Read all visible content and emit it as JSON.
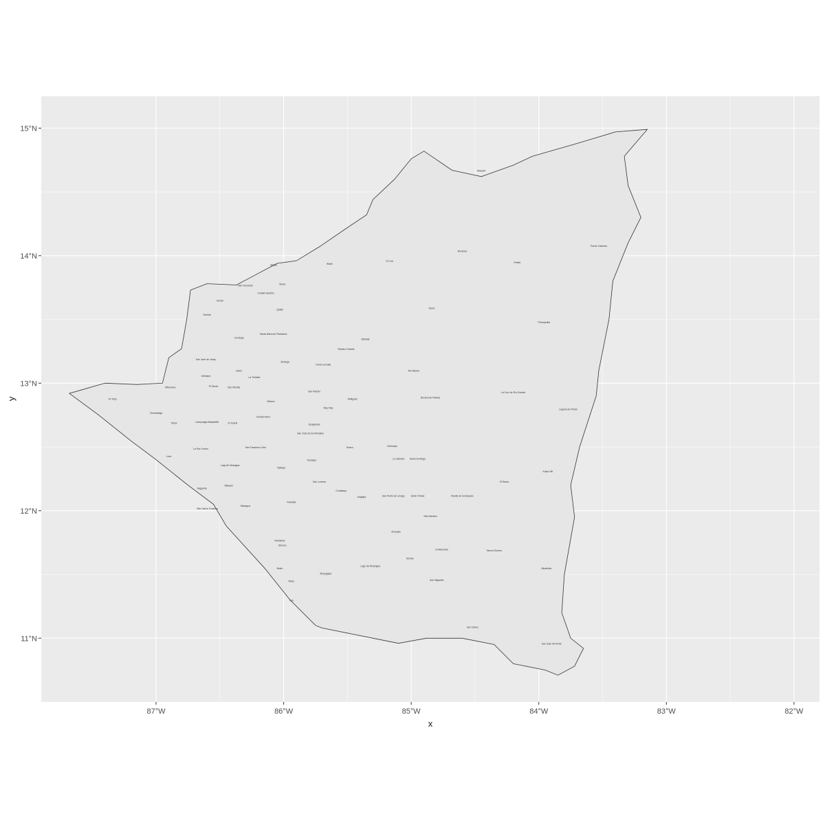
{
  "chart_data": {
    "type": "map",
    "xlabel": "x",
    "ylabel": "y",
    "xlim": [
      -87.9,
      -81.8
    ],
    "ylim": [
      10.5,
      15.25
    ],
    "x_ticks": [
      -87,
      -86,
      -85,
      -84,
      -83,
      -82
    ],
    "x_tick_labels": [
      "87°W",
      "86°W",
      "85°W",
      "84°W",
      "83°W",
      "82°W"
    ],
    "y_ticks": [
      11,
      12,
      13,
      14,
      15
    ],
    "y_tick_labels": [
      "11°N",
      "12°N",
      "13°N",
      "14°N",
      "15°N"
    ],
    "grid": true,
    "colors": {
      "panel": "#ebebeb",
      "grid": "#ffffff",
      "fill": "#e6e6e6",
      "border": "#333333"
    },
    "outline": [
      [
        -83.15,
        14.99
      ],
      [
        -83.4,
        14.97
      ],
      [
        -83.7,
        14.88
      ],
      [
        -84.05,
        14.78
      ],
      [
        -84.2,
        14.71
      ],
      [
        -84.45,
        14.62
      ],
      [
        -84.68,
        14.67
      ],
      [
        -84.9,
        14.82
      ],
      [
        -85.0,
        14.76
      ],
      [
        -85.13,
        14.6
      ],
      [
        -85.3,
        14.44
      ],
      [
        -85.35,
        14.32
      ],
      [
        -85.5,
        14.22
      ],
      [
        -85.72,
        14.07
      ],
      [
        -85.9,
        13.96
      ],
      [
        -86.05,
        13.94
      ],
      [
        -86.22,
        13.85
      ],
      [
        -86.37,
        13.77
      ],
      [
        -86.6,
        13.78
      ],
      [
        -86.73,
        13.73
      ],
      [
        -86.76,
        13.5
      ],
      [
        -86.8,
        13.27
      ],
      [
        -86.9,
        13.2
      ],
      [
        -86.95,
        13.0
      ],
      [
        -87.15,
        12.99
      ],
      [
        -87.4,
        13.0
      ],
      [
        -87.68,
        12.92
      ],
      [
        -87.45,
        12.75
      ],
      [
        -87.2,
        12.55
      ],
      [
        -87.0,
        12.4
      ],
      [
        -86.75,
        12.2
      ],
      [
        -86.55,
        12.05
      ],
      [
        -86.45,
        11.88
      ],
      [
        -86.15,
        11.55
      ],
      [
        -85.95,
        11.3
      ],
      [
        -85.75,
        11.1
      ],
      [
        -85.7,
        11.08
      ],
      [
        -85.3,
        11.0
      ],
      [
        -85.1,
        10.96
      ],
      [
        -84.88,
        11.0
      ],
      [
        -84.6,
        11.0
      ],
      [
        -84.35,
        10.95
      ],
      [
        -84.2,
        10.8
      ],
      [
        -83.95,
        10.75
      ],
      [
        -83.85,
        10.71
      ],
      [
        -83.72,
        10.78
      ],
      [
        -83.65,
        10.92
      ],
      [
        -83.75,
        11.0
      ],
      [
        -83.82,
        11.2
      ],
      [
        -83.8,
        11.5
      ],
      [
        -83.72,
        11.95
      ],
      [
        -83.75,
        12.2
      ],
      [
        -83.68,
        12.5
      ],
      [
        -83.55,
        12.9
      ],
      [
        -83.53,
        13.1
      ],
      [
        -83.45,
        13.5
      ],
      [
        -83.42,
        13.8
      ],
      [
        -83.3,
        14.1
      ],
      [
        -83.2,
        14.3
      ],
      [
        -83.3,
        14.55
      ],
      [
        -83.33,
        14.78
      ]
    ],
    "municipalities": [
      {
        "name": "Waspán",
        "lon": -84.45,
        "lat": 14.66
      },
      {
        "name": "Puerto Cabezas",
        "lon": -83.53,
        "lat": 14.07
      },
      {
        "name": "Bonanza",
        "lon": -84.6,
        "lat": 14.03
      },
      {
        "name": "Rosita",
        "lon": -84.17,
        "lat": 13.94
      },
      {
        "name": "Wiwilí",
        "lon": -85.64,
        "lat": 13.93
      },
      {
        "name": "El Cuá",
        "lon": -85.17,
        "lat": 13.95
      },
      {
        "name": "Siuna",
        "lon": -84.84,
        "lat": 13.58
      },
      {
        "name": "Prinzapolka",
        "lon": -83.96,
        "lat": 13.47
      },
      {
        "name": "Waslala",
        "lon": -85.36,
        "lat": 13.34
      },
      {
        "name": "Rancho Grande",
        "lon": -85.51,
        "lat": 13.26
      },
      {
        "name": "Río Blanco",
        "lon": -84.98,
        "lat": 13.09
      },
      {
        "name": "La Cruz de Río Grande",
        "lon": -84.2,
        "lat": 12.92
      },
      {
        "name": "Laguna de Perlas",
        "lon": -83.77,
        "lat": 12.79
      },
      {
        "name": "Bocana de Paiwas",
        "lon": -84.85,
        "lat": 12.88
      },
      {
        "name": "Matiguás",
        "lon": -85.46,
        "lat": 12.87
      },
      {
        "name": "Muy Muy",
        "lon": -85.65,
        "lat": 12.8
      },
      {
        "name": "San Ramón",
        "lon": -85.76,
        "lat": 12.93
      },
      {
        "name": "Tuma-La Dalia",
        "lon": -85.69,
        "lat": 13.14
      },
      {
        "name": "Jinotega",
        "lon": -85.99,
        "lat": 13.16
      },
      {
        "name": "Santa María de Pantasma",
        "lon": -86.08,
        "lat": 13.38
      },
      {
        "name": "Jalapa",
        "lon": -86.08,
        "lat": 13.92
      },
      {
        "name": "Murra",
        "lon": -86.01,
        "lat": 13.77
      },
      {
        "name": "Quilalí",
        "lon": -86.03,
        "lat": 13.57
      },
      {
        "name": "Ciudad Sandino",
        "lon": -86.14,
        "lat": 13.7
      },
      {
        "name": "San Fernando",
        "lon": -86.3,
        "lat": 13.76
      },
      {
        "name": "Ocotal",
        "lon": -86.5,
        "lat": 13.64
      },
      {
        "name": "Somoto",
        "lon": -86.6,
        "lat": 13.53
      },
      {
        "name": "Condega",
        "lon": -86.35,
        "lat": 13.35
      },
      {
        "name": "Estelí",
        "lon": -86.35,
        "lat": 13.09
      },
      {
        "name": "San Juan de Limay",
        "lon": -86.61,
        "lat": 13.18
      },
      {
        "name": "Achuapa",
        "lon": -86.61,
        "lat": 13.05
      },
      {
        "name": "Villanueva",
        "lon": -86.89,
        "lat": 12.96
      },
      {
        "name": "El Sauce",
        "lon": -86.55,
        "lat": 12.97
      },
      {
        "name": "San Nicolás",
        "lon": -86.39,
        "lat": 12.96
      },
      {
        "name": "La Trinidad",
        "lon": -86.23,
        "lat": 13.04
      },
      {
        "name": "Sébaco",
        "lon": -86.1,
        "lat": 12.85
      },
      {
        "name": "Ciudad Darío",
        "lon": -86.16,
        "lat": 12.73
      },
      {
        "name": "El Viejo",
        "lon": -87.34,
        "lat": 12.87
      },
      {
        "name": "Chinandega",
        "lon": -87.0,
        "lat": 12.76
      },
      {
        "name": "Telica",
        "lon": -86.86,
        "lat": 12.68
      },
      {
        "name": "Larreynaga-Malpaisillo",
        "lon": -86.6,
        "lat": 12.69
      },
      {
        "name": "El Jicaral",
        "lon": -86.4,
        "lat": 12.68
      },
      {
        "name": "León",
        "lon": -86.9,
        "lat": 12.42
      },
      {
        "name": "La Paz Centro",
        "lon": -86.65,
        "lat": 12.48
      },
      {
        "name": "Nagarote",
        "lon": -86.64,
        "lat": 12.17
      },
      {
        "name": "Villa Carlos Fonseca",
        "lon": -86.6,
        "lat": 12.01
      },
      {
        "name": "Mateare",
        "lon": -86.43,
        "lat": 12.19
      },
      {
        "name": "Lago de Managua",
        "lon": -86.42,
        "lat": 12.35
      },
      {
        "name": "San Francisco Libre",
        "lon": -86.22,
        "lat": 12.49
      },
      {
        "name": "Tipitapa",
        "lon": -86.02,
        "lat": 12.33
      },
      {
        "name": "Managua",
        "lon": -86.3,
        "lat": 12.03
      },
      {
        "name": "Granada",
        "lon": -85.94,
        "lat": 12.06
      },
      {
        "name": "Diriomo",
        "lon": -86.01,
        "lat": 11.72
      },
      {
        "name": "Nandaime",
        "lon": -86.03,
        "lat": 11.76
      },
      {
        "name": "Rivas",
        "lon": -85.94,
        "lat": 11.44
      },
      {
        "name": "Belén",
        "lon": -86.03,
        "lat": 11.54
      },
      {
        "name": "Tola",
        "lon": -85.94,
        "lat": 11.29
      },
      {
        "name": "Moyogalpa",
        "lon": -85.67,
        "lat": 11.5
      },
      {
        "name": "Lago de Nicaragua",
        "lon": -85.32,
        "lat": 11.56
      },
      {
        "name": "San Lorenzo",
        "lon": -85.72,
        "lat": 12.22
      },
      {
        "name": "Comalapa",
        "lon": -85.55,
        "lat": 12.15
      },
      {
        "name": "Juigalpa",
        "lon": -85.39,
        "lat": 12.1
      },
      {
        "name": "Acoyapa",
        "lon": -85.12,
        "lat": 11.83
      },
      {
        "name": "Morrito",
        "lon": -85.01,
        "lat": 11.62
      },
      {
        "name": "San Miguelito",
        "lon": -84.8,
        "lat": 11.45
      },
      {
        "name": "San Carlos",
        "lon": -84.52,
        "lat": 11.08
      },
      {
        "name": "San Juan del Norte",
        "lon": -83.9,
        "lat": 10.95
      },
      {
        "name": "El Almendro",
        "lon": -84.76,
        "lat": 11.69
      },
      {
        "name": "Nueva Guinea",
        "lon": -84.35,
        "lat": 11.68
      },
      {
        "name": "Bluefields",
        "lon": -83.94,
        "lat": 11.54
      },
      {
        "name": "Villa Sandino",
        "lon": -84.85,
        "lat": 11.95
      },
      {
        "name": "Santo Tomás",
        "lon": -84.95,
        "lat": 12.11
      },
      {
        "name": "Muelle de los Bueyes",
        "lon": -84.6,
        "lat": 12.11
      },
      {
        "name": "El Rama",
        "lon": -84.27,
        "lat": 12.22
      },
      {
        "name": "Kukra Hill",
        "lon": -83.93,
        "lat": 12.3
      },
      {
        "name": "San Pedro de Lóvago",
        "lon": -85.14,
        "lat": 12.11
      },
      {
        "name": "La Libertad",
        "lon": -85.1,
        "lat": 12.4
      },
      {
        "name": "Santo Domingo",
        "lon": -84.95,
        "lat": 12.4
      },
      {
        "name": "Camoapa",
        "lon": -85.15,
        "lat": 12.5
      },
      {
        "name": "Boaco",
        "lon": -85.48,
        "lat": 12.49
      },
      {
        "name": "Teustepe",
        "lon": -85.78,
        "lat": 12.39
      },
      {
        "name": "San José de los Remates",
        "lon": -85.79,
        "lat": 12.6
      },
      {
        "name": "Esquipulas",
        "lon": -85.76,
        "lat": 12.67
      }
    ]
  }
}
